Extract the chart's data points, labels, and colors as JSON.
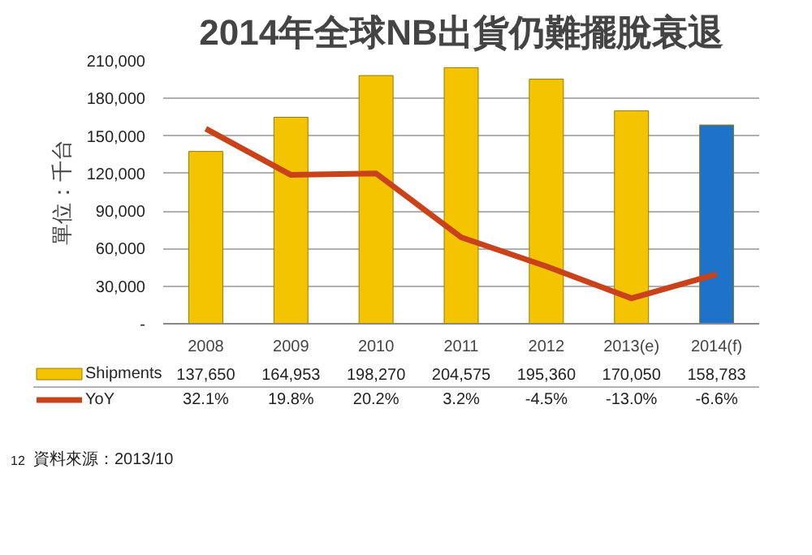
{
  "chart_data": {
    "type": "bar",
    "title": "2014年全球NB出貨仍難擺脫衰退",
    "ylabel": "單位：千台",
    "categories": [
      "2008",
      "2009",
      "2010",
      "2011",
      "2012",
      "2013(e)",
      "2014(f)"
    ],
    "series": [
      {
        "name": "Shipments",
        "color": "#f5c400",
        "colors": [
          "#f5c400",
          "#f5c400",
          "#f5c400",
          "#f5c400",
          "#f5c400",
          "#f5c400",
          "#1f72c9"
        ],
        "values": [
          137650,
          164953,
          198270,
          204575,
          195360,
          170050,
          158783
        ],
        "value_labels": [
          "137,650",
          "164,953",
          "198,270",
          "204,575",
          "195,360",
          "170,050",
          "158,783"
        ]
      },
      {
        "name": "YoY",
        "type": "line",
        "axis": "y2",
        "color": "#c9421a",
        "values": [
          32.1,
          19.8,
          20.2,
          3.2,
          -4.5,
          -13.0,
          -6.6
        ],
        "value_labels": [
          "32.1%",
          "19.8%",
          "20.2%",
          "3.2%",
          "-4.5%",
          "-13.0%",
          "-6.6%"
        ]
      }
    ],
    "ylim": [
      0,
      210000
    ],
    "yticks": [
      {
        "value": 0,
        "label": "-"
      },
      {
        "value": 30000,
        "label": "30,000"
      },
      {
        "value": 60000,
        "label": "60,000"
      },
      {
        "value": 90000,
        "label": "90,000"
      },
      {
        "value": 120000,
        "label": "120,000"
      },
      {
        "value": 150000,
        "label": "150,000"
      },
      {
        "value": 180000,
        "label": "180,000"
      },
      {
        "value": 210000,
        "label": "210,000"
      }
    ],
    "tick_labels": "y",
    "grid": "y",
    "legend": "bottom",
    "annotations": [
      "12",
      "資料來源：2013/10"
    ]
  }
}
